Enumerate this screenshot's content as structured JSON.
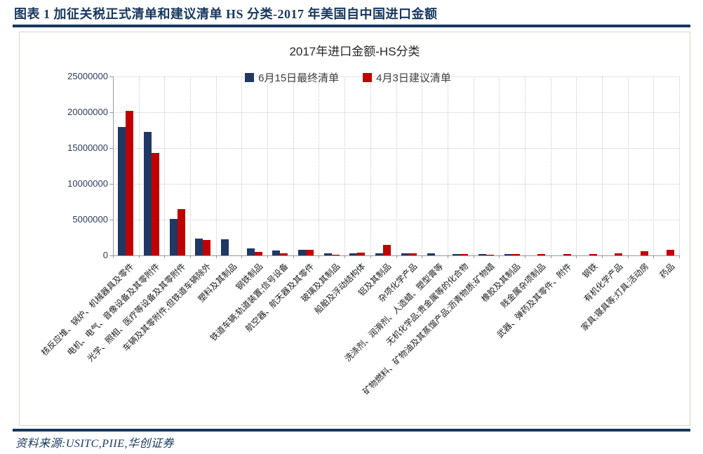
{
  "header": {
    "title": "图表 1  加征关税正式清单和建议清单 HS 分类-2017 年美国自中国进口金额"
  },
  "footer": {
    "source": "资料来源:USITC,PIIE,华创证券"
  },
  "chart_data": {
    "type": "bar",
    "title": "2017年进口金额-HS分类",
    "categories": [
      "核反应堆、锅炉、机械器具及零件",
      "电机、电气、音像设备及其零附件",
      "光学、照相、医疗等设备及其零附件",
      "车辆及其零附件,但铁道车辆除外",
      "塑料及其制品",
      "钢铁制品",
      "铁道车辆;轨道装置;信号设备",
      "航空器、航天器及其零件",
      "玻璃及其制品",
      "船舶及浮动结构体",
      "铝及其制品",
      "杂项化学产品",
      "洗涤剂、润滑剂、人造蜡、塑型膏等",
      "无机化学品;贵金属等的化合物",
      "矿物燃料、矿物油及其蒸馏产品;沥青物质;矿物蜡",
      "橡胶及其制品",
      "贱金属杂项制品",
      "武器、弹药及其零件、附件",
      "钢铁",
      "有机化学产品",
      "家具;寝具等;灯具;活动房",
      "药品"
    ],
    "series": [
      {
        "name": "6月15日最终清单",
        "color": "#1f3864",
        "values": [
          17900000,
          17300000,
          5100000,
          2400000,
          2300000,
          950000,
          700000,
          750000,
          250000,
          280000,
          250000,
          300000,
          250000,
          200000,
          220000,
          200000,
          0,
          0,
          0,
          0,
          0,
          0
        ]
      },
      {
        "name": "4月3日建议清单",
        "color": "#c00000",
        "values": [
          20200000,
          14300000,
          6500000,
          2200000,
          0,
          500000,
          250000,
          750000,
          100000,
          380000,
          1450000,
          330000,
          0,
          200000,
          120000,
          200000,
          220000,
          180000,
          200000,
          250000,
          550000,
          750000
        ]
      }
    ],
    "xlabel": "",
    "ylabel": "",
    "ylim": [
      0,
      25000000
    ],
    "ytick_interval": 5000000,
    "yticks": [
      "0",
      "5000000",
      "10000000",
      "15000000",
      "20000000",
      "25000000"
    ],
    "grid": "dotted-both",
    "legend_position": "top-center"
  },
  "colors": {
    "accent_navy": "#17375e",
    "bar_blue": "#1f3864",
    "bar_red": "#c00000",
    "axis_gray": "#9a9a9a",
    "grid_gray": "#c9c9c9"
  }
}
